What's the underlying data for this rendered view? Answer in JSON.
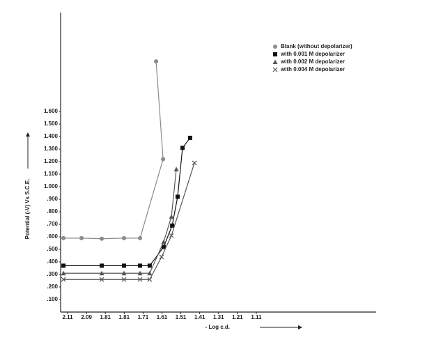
{
  "chart_data": {
    "type": "line",
    "x_label": "- Log c.d.",
    "y_label": "Potential (-V) Vs S.C.E.",
    "xlim": [
      -0.37,
      16.35
    ],
    "ylim": [
      0,
      2.39
    ],
    "xticks": [
      {
        "value": 0,
        "label": "2.11"
      },
      {
        "value": 1,
        "label": "2.09"
      },
      {
        "value": 2,
        "label": "1.81"
      },
      {
        "value": 3,
        "label": "1.81"
      },
      {
        "value": 4,
        "label": "1.71"
      },
      {
        "value": 5,
        "label": "1.61"
      },
      {
        "value": 6,
        "label": "1.51"
      },
      {
        "value": 7,
        "label": "1.41"
      },
      {
        "value": 8,
        "label": "1.31"
      },
      {
        "value": 9,
        "label": "1.21"
      },
      {
        "value": 10,
        "label": "1.11"
      }
    ],
    "yticks": [
      {
        "value": 0.1,
        "label": ".100"
      },
      {
        "value": 0.2,
        "label": ".200"
      },
      {
        "value": 0.3,
        "label": ".300"
      },
      {
        "value": 0.4,
        "label": ".400"
      },
      {
        "value": 0.5,
        "label": ".500"
      },
      {
        "value": 0.6,
        "label": ".600"
      },
      {
        "value": 0.7,
        "label": ".700"
      },
      {
        "value": 0.8,
        "label": ".800"
      },
      {
        "value": 0.9,
        "label": ".900"
      },
      {
        "value": 1.0,
        "label": "1.000"
      },
      {
        "value": 1.1,
        "label": "1.100"
      },
      {
        "value": 1.2,
        "label": "1.200"
      },
      {
        "value": 1.3,
        "label": "1.300"
      },
      {
        "value": 1.4,
        "label": "1.400"
      },
      {
        "value": 1.5,
        "label": "1.500"
      },
      {
        "value": 1.6,
        "label": "1.600"
      }
    ],
    "legend": "upper right",
    "series": [
      {
        "name": "Blank (without depolarizer)",
        "color": "#8a8a8a",
        "marker": "circle",
        "x": [
          -0.22,
          0.74,
          1.81,
          2.99,
          3.84,
          5.06,
          4.69
        ],
        "values": [
          0.59,
          0.59,
          0.585,
          0.59,
          0.59,
          1.22,
          2.0
        ]
      },
      {
        "name": "with 0.001 M depolarizer",
        "color": "#111111",
        "marker": "square",
        "x": [
          -0.22,
          1.81,
          2.99,
          3.84,
          4.35,
          5.09,
          5.54,
          5.83,
          6.09,
          6.49
        ],
        "values": [
          0.37,
          0.37,
          0.37,
          0.37,
          0.37,
          0.52,
          0.69,
          0.92,
          1.31,
          1.39
        ]
      },
      {
        "name": "with 0.002 M depolarizer",
        "color": "#555555",
        "marker": "triangle",
        "x": [
          -0.22,
          1.81,
          2.99,
          3.84,
          4.35,
          5.09,
          5.5,
          5.76
        ],
        "values": [
          0.31,
          0.31,
          0.31,
          0.31,
          0.31,
          0.56,
          0.76,
          1.14
        ]
      },
      {
        "name": "with 0.004 M depolarizer",
        "color": "#555555",
        "marker": "x",
        "x": [
          -0.22,
          1.81,
          2.99,
          3.84,
          4.35,
          4.98,
          5.5,
          6.72
        ],
        "values": [
          0.26,
          0.26,
          0.26,
          0.26,
          0.26,
          0.44,
          0.61,
          1.19
        ]
      }
    ]
  }
}
